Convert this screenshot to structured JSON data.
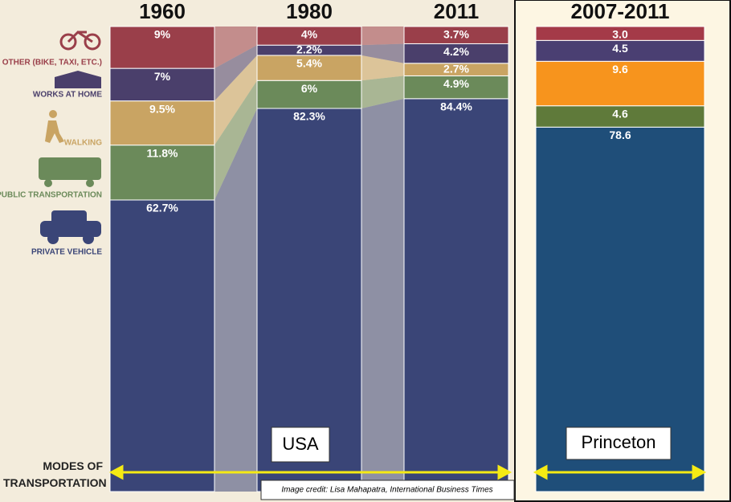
{
  "chart_data": [
    {
      "type": "bar",
      "stacked": true,
      "categories": [
        "1960",
        "1980",
        "2011"
      ],
      "series": [
        {
          "name": "PRIVATE VEHICLE",
          "color": "#3a4577",
          "values": [
            62.7,
            82.3,
            84.4
          ],
          "value_labels": [
            "62.7%",
            "82.3%",
            "84.4%"
          ]
        },
        {
          "name": "PUBLIC TRANSPORTATION",
          "color": "#6b8a5a",
          "values": [
            11.8,
            6,
            4.9
          ],
          "value_labels": [
            "11.8%",
            "6%",
            "4.9%"
          ]
        },
        {
          "name": "WALKING",
          "color": "#c9a463",
          "values": [
            9.5,
            5.4,
            2.7
          ],
          "value_labels": [
            "9.5%",
            "5.4%",
            "2.7%"
          ]
        },
        {
          "name": "WORKS AT HOME",
          "color": "#4a3f6b",
          "values": [
            7,
            2.2,
            4.2
          ],
          "value_labels": [
            "7%",
            "2.2%",
            "4.2%"
          ]
        },
        {
          "name": "OTHER (BIKE, TAXI, ETC.)",
          "color": "#9a3f4a",
          "values": [
            9,
            4,
            3.7
          ],
          "value_labels": [
            "9%",
            "4%",
            "3.7%"
          ]
        }
      ],
      "axis_title": "MODES OF TRANSPORTATION",
      "label": "USA"
    },
    {
      "type": "bar",
      "stacked": true,
      "categories": [
        "2007-2011"
      ],
      "series": [
        {
          "color": "#1f4e79",
          "values": [
            78.6
          ]
        },
        {
          "color": "#5f7a3a",
          "values": [
            4.6
          ]
        },
        {
          "color": "#f7941d",
          "values": [
            9.6
          ]
        },
        {
          "color": "#4a3f72",
          "values": [
            4.5
          ]
        },
        {
          "color": "#a43a48",
          "values": [
            3.0
          ],
          "value_labels": [
            "3.0"
          ]
        }
      ],
      "label": "Princeton"
    }
  ],
  "credit": "Image credit: Lisa Mahapatra, International Business Times"
}
